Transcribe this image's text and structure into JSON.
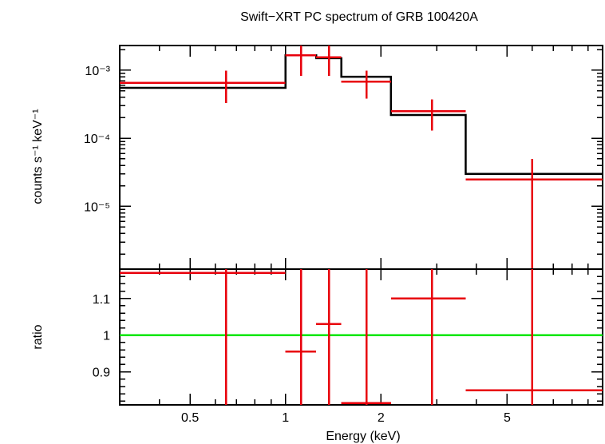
{
  "title": "Swift−XRT PC spectrum of GRB 100420A",
  "colors": {
    "model": "#000000",
    "data": "#e8000b",
    "unity": "#00e600",
    "frame": "#000000"
  },
  "chart_data": [
    {
      "type": "line",
      "panel": "spectrum",
      "ylabel": "counts s⁻¹ keV⁻¹",
      "yscale": "log",
      "ylim": [
        1.2e-06,
        0.0023
      ],
      "yticks": [
        {
          "value": 0.001,
          "label": "10⁻³"
        },
        {
          "value": 0.0001,
          "label": "10⁻⁴"
        },
        {
          "value": 1e-05,
          "label": "10⁻⁵"
        }
      ],
      "series": [
        {
          "kind": "model",
          "steps": [
            {
              "x0": 0.3,
              "x1": 1.0,
              "y": 0.00055
            },
            {
              "x0": 1.0,
              "x1": 1.25,
              "y": 0.00165
            },
            {
              "x0": 1.25,
              "x1": 1.5,
              "y": 0.0015
            },
            {
              "x0": 1.5,
              "x1": 2.15,
              "y": 0.0008
            },
            {
              "x0": 2.15,
              "x1": 3.7,
              "y": 0.00022
            },
            {
              "x0": 3.7,
              "x1": 10.0,
              "y": 3e-05
            }
          ]
        },
        {
          "kind": "data",
          "points": [
            {
              "x": 0.65,
              "xlo": 0.3,
              "xhi": 1.0,
              "y": 0.00065,
              "ylo": 0.00033,
              "yhi": 0.00098
            },
            {
              "x": 1.12,
              "xlo": 1.0,
              "xhi": 1.25,
              "y": 0.00165,
              "ylo": 0.00082,
              "yhi": 0.0023
            },
            {
              "x": 1.37,
              "xlo": 1.25,
              "xhi": 1.5,
              "y": 0.00155,
              "ylo": 0.00082,
              "yhi": 0.0023
            },
            {
              "x": 1.8,
              "xlo": 1.5,
              "xhi": 2.15,
              "y": 0.00068,
              "ylo": 0.00038,
              "yhi": 0.00098
            },
            {
              "x": 2.9,
              "xlo": 2.15,
              "xhi": 3.7,
              "y": 0.00025,
              "ylo": 0.00013,
              "yhi": 0.00037
            },
            {
              "x": 6.0,
              "xlo": 3.7,
              "xhi": 10.0,
              "y": 2.5e-05,
              "ylo": 1.2e-06,
              "yhi": 5e-05
            }
          ]
        }
      ]
    },
    {
      "type": "scatter",
      "panel": "ratio",
      "ylabel": "ratio",
      "xlabel": "Energy (keV)",
      "xscale": "log",
      "xlim": [
        0.3,
        10.0
      ],
      "xticks": [
        {
          "value": 0.5,
          "label": "0.5"
        },
        {
          "value": 1,
          "label": "1"
        },
        {
          "value": 2,
          "label": "2"
        },
        {
          "value": 5,
          "label": "5"
        }
      ],
      "ylim": [
        0.81,
        1.18
      ],
      "yticks": [
        {
          "value": 0.9,
          "label": "0.9"
        },
        {
          "value": 1.0,
          "label": "1"
        },
        {
          "value": 1.1,
          "label": "1.1"
        }
      ],
      "reference_line": 1.0,
      "points": [
        {
          "x": 0.65,
          "xlo": 0.3,
          "xhi": 1.0,
          "y": 1.17,
          "ylo": 0.81,
          "yhi": 1.18
        },
        {
          "x": 1.12,
          "xlo": 1.0,
          "xhi": 1.25,
          "y": 0.955,
          "ylo": 0.81,
          "yhi": 1.18
        },
        {
          "x": 1.37,
          "xlo": 1.25,
          "xhi": 1.5,
          "y": 1.03,
          "ylo": 0.81,
          "yhi": 1.18
        },
        {
          "x": 1.8,
          "xlo": 1.5,
          "xhi": 2.15,
          "y": 0.815,
          "ylo": 0.81,
          "yhi": 1.18
        },
        {
          "x": 2.9,
          "xlo": 2.15,
          "xhi": 3.7,
          "y": 1.1,
          "ylo": 0.81,
          "yhi": 1.18
        },
        {
          "x": 6.0,
          "xlo": 3.7,
          "xhi": 10.0,
          "y": 0.85,
          "ylo": 0.81,
          "yhi": 1.18
        }
      ]
    }
  ]
}
